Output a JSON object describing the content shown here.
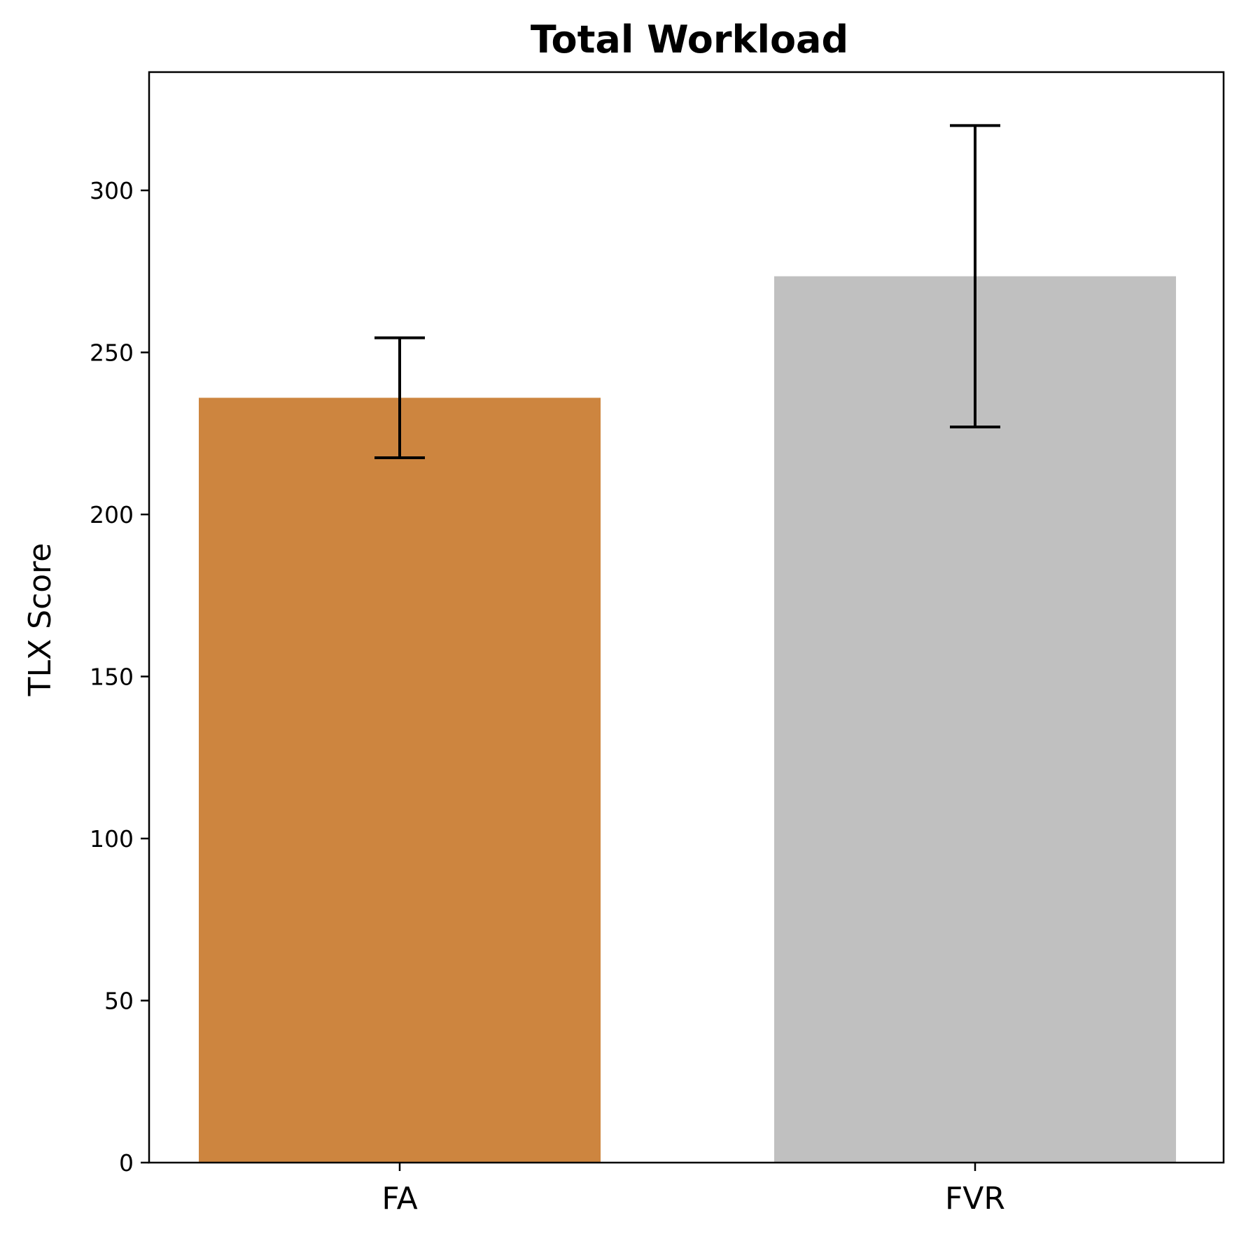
{
  "chart_data": {
    "type": "bar",
    "title": "Total Workload",
    "xlabel": "",
    "ylabel": "TLX Score",
    "categories": [
      "FA",
      "FVR"
    ],
    "values": [
      236,
      273.5
    ],
    "error": [
      {
        "low": 217.5,
        "high": 254.5
      },
      {
        "low": 227,
        "high": 320
      }
    ],
    "colors": [
      "#cd853f",
      "#c0c0c0"
    ],
    "ylim": [
      0,
      336
    ],
    "yticks": [
      0,
      50,
      100,
      150,
      200,
      250,
      300
    ],
    "grid": false,
    "legend": false
  }
}
